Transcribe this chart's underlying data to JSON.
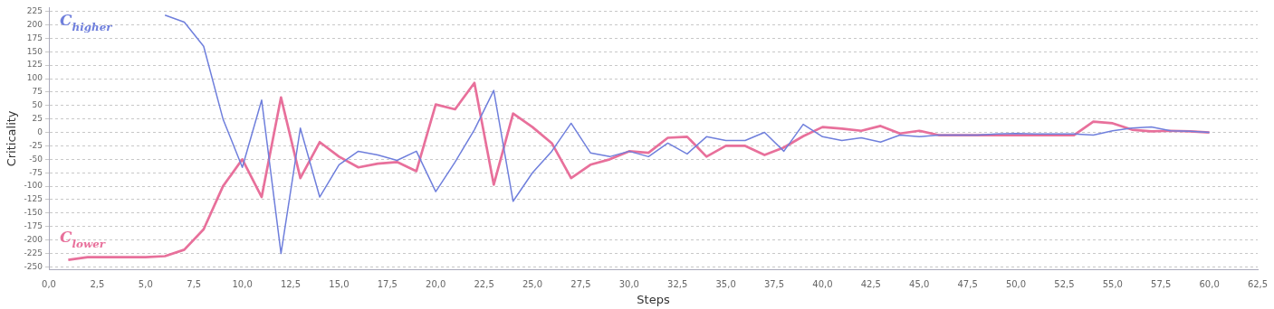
{
  "chart_data": {
    "type": "line",
    "xlabel": "Steps",
    "ylabel": "Criticality",
    "xlim": [
      0,
      62.5
    ],
    "ylim": [
      -255,
      232
    ],
    "xticks": [
      {
        "value": 0,
        "label": "0,0"
      },
      {
        "value": 2.5,
        "label": "2,5"
      },
      {
        "value": 5,
        "label": "5,0"
      },
      {
        "value": 7.5,
        "label": "7,5"
      },
      {
        "value": 10,
        "label": "10,0"
      },
      {
        "value": 12.5,
        "label": "12,5"
      },
      {
        "value": 15,
        "label": "15,0"
      },
      {
        "value": 17.5,
        "label": "17,5"
      },
      {
        "value": 20,
        "label": "20,0"
      },
      {
        "value": 22.5,
        "label": "22,5"
      },
      {
        "value": 25,
        "label": "25,0"
      },
      {
        "value": 27.5,
        "label": "27,5"
      },
      {
        "value": 30,
        "label": "30,0"
      },
      {
        "value": 32.5,
        "label": "32,5"
      },
      {
        "value": 35,
        "label": "35,0"
      },
      {
        "value": 37.5,
        "label": "37,5"
      },
      {
        "value": 40,
        "label": "40,0"
      },
      {
        "value": 42.5,
        "label": "42,5"
      },
      {
        "value": 45,
        "label": "45,0"
      },
      {
        "value": 47.5,
        "label": "47,5"
      },
      {
        "value": 50,
        "label": "50,0"
      },
      {
        "value": 52.5,
        "label": "52,5"
      },
      {
        "value": 55,
        "label": "55,0"
      },
      {
        "value": 57.5,
        "label": "57,5"
      },
      {
        "value": 60,
        "label": "60,0"
      },
      {
        "value": 62.5,
        "label": "62,5"
      }
    ],
    "yticks": [
      -250,
      -225,
      -200,
      -175,
      -150,
      -125,
      -100,
      -75,
      -50,
      -25,
      0,
      25,
      50,
      75,
      100,
      125,
      150,
      175,
      200,
      225
    ],
    "grid": "y",
    "marker": "none",
    "line_style": "solid",
    "series": [
      {
        "name": "C$_{higher}$",
        "color": "#6f7fdc",
        "x": [
          6,
          7,
          8,
          9,
          10,
          11,
          12,
          13,
          14,
          15,
          16,
          17,
          18,
          19,
          20,
          21,
          22,
          23,
          24,
          25,
          26,
          27,
          28,
          29,
          30,
          31,
          32,
          33,
          34,
          35,
          36,
          37,
          38,
          39,
          40,
          41,
          42,
          43,
          44,
          45,
          46,
          47,
          48,
          49,
          50,
          51,
          52,
          53,
          54,
          55,
          56,
          57,
          58,
          59,
          60
        ],
        "values": [
          218,
          205,
          160,
          25,
          -65,
          60,
          -225,
          8,
          -120,
          -60,
          -35,
          -42,
          -52,
          -35,
          -110,
          -55,
          5,
          78,
          -128,
          -75,
          -35,
          17,
          -38,
          -45,
          -35,
          -45,
          -20,
          -40,
          -8,
          -15,
          -15,
          0,
          -35,
          15,
          -8,
          -15,
          -10,
          -18,
          -5,
          -8,
          -5,
          -5,
          -5,
          -3,
          -2,
          -3,
          -3,
          -3,
          -5,
          3,
          8,
          10,
          3,
          2,
          0
        ]
      },
      {
        "name": "C$_{lower}$",
        "color": "#e8709b",
        "x": [
          1,
          2,
          3,
          4,
          5,
          6,
          7,
          8,
          9,
          10,
          11,
          12,
          13,
          14,
          15,
          16,
          17,
          18,
          19,
          20,
          21,
          22,
          23,
          24,
          25,
          26,
          27,
          28,
          29,
          30,
          31,
          32,
          33,
          34,
          35,
          36,
          37,
          38,
          39,
          40,
          41,
          42,
          43,
          44,
          45,
          46,
          47,
          48,
          49,
          50,
          51,
          52,
          53,
          54,
          55,
          56,
          57,
          58,
          59,
          60
        ],
        "values": [
          -237,
          -232,
          -232,
          -232,
          -232,
          -230,
          -218,
          -180,
          -100,
          -50,
          -120,
          65,
          -85,
          -18,
          -45,
          -65,
          -58,
          -55,
          -72,
          52,
          43,
          92,
          -97,
          35,
          10,
          -20,
          -85,
          -60,
          -50,
          -35,
          -38,
          -10,
          -8,
          -45,
          -25,
          -25,
          -42,
          -28,
          -7,
          10,
          7,
          3,
          12,
          -2,
          3,
          -5,
          -5,
          -5,
          -5,
          -5,
          -5,
          -5,
          -5,
          20,
          17,
          5,
          2,
          3,
          2,
          0
        ]
      }
    ]
  }
}
